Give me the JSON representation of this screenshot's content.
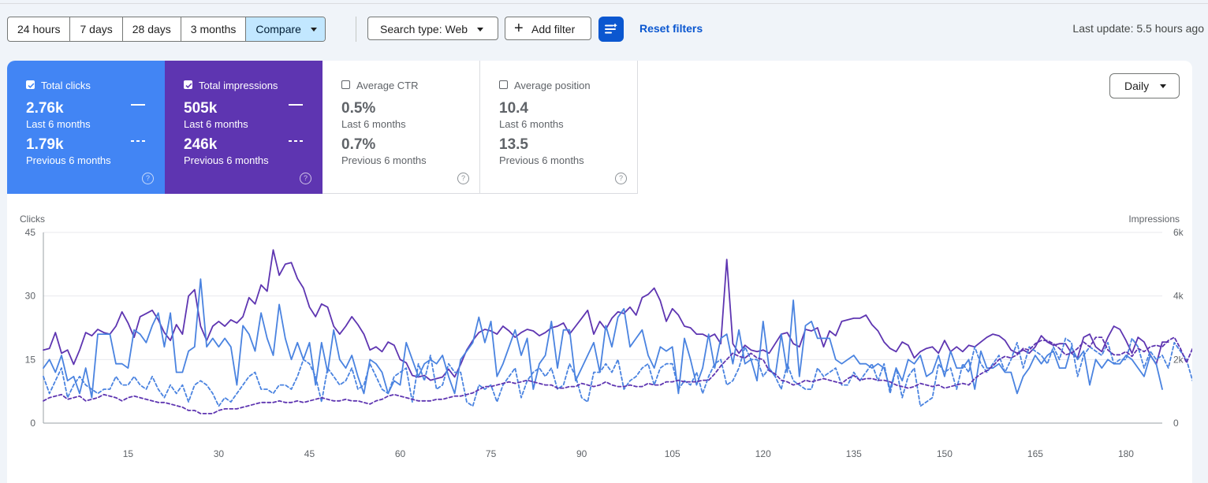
{
  "toolbar": {
    "ranges": [
      "24 hours",
      "7 days",
      "28 days",
      "3 months"
    ],
    "compare_label": "Compare",
    "search_type_label": "Search type: Web",
    "add_filter_label": "Add filter",
    "reset_filters_label": "Reset filters",
    "last_update": "Last update: 5.5 hours ago"
  },
  "metrics": {
    "clicks": {
      "label": "Total clicks",
      "value": "2.76k",
      "period": "Last 6 months",
      "prev_value": "1.79k",
      "prev_period": "Previous 6 months",
      "checked": true
    },
    "impressions": {
      "label": "Total impressions",
      "value": "505k",
      "period": "Last 6 months",
      "prev_value": "246k",
      "prev_period": "Previous 6 months",
      "checked": true
    },
    "ctr": {
      "label": "Average CTR",
      "value": "0.5%",
      "period": "Last 6 months",
      "prev_value": "0.7%",
      "prev_period": "Previous 6 months",
      "checked": false
    },
    "position": {
      "label": "Average position",
      "value": "10.4",
      "period": "Last 6 months",
      "prev_value": "13.5",
      "prev_period": "Previous 6 months",
      "checked": false
    }
  },
  "granularity_label": "Daily",
  "colors": {
    "clicks": "#4285f4",
    "impressions": "#5e35b1",
    "primary": "#0b57d0"
  },
  "chart_data": {
    "type": "line",
    "left_axis_label": "Clicks",
    "right_axis_label": "Impressions",
    "y_left_range": [
      0,
      45
    ],
    "y_left_ticks": [
      "0",
      "15",
      "30",
      "45"
    ],
    "y_right_range": [
      0,
      6000
    ],
    "y_right_ticks": [
      "0",
      "2k",
      "4k",
      "6k"
    ],
    "x_range": [
      1,
      186
    ],
    "x_ticks": [
      15,
      30,
      45,
      60,
      75,
      90,
      105,
      120,
      135,
      150,
      165,
      180
    ],
    "grid": true,
    "series": [
      {
        "axis": "right",
        "color": "#5e35b1",
        "dashed": false,
        "y": [
          2300,
          2350,
          2850,
          2200,
          2300,
          1850,
          2300,
          2850,
          2750,
          2950,
          2850,
          2800,
          3050,
          3500,
          3150,
          2700,
          3350,
          3450,
          3550,
          3250,
          2850,
          2600,
          3100,
          2800,
          4000,
          4200,
          3050,
          2600,
          3050,
          3200,
          3050,
          3250,
          3150,
          3350,
          3950,
          3750,
          4350,
          4150,
          5450,
          4650,
          5000,
          5050,
          4550,
          4250,
          3650,
          3350,
          3750,
          3650,
          3050,
          2800,
          3050,
          3350,
          3100,
          2800,
          2300,
          2400,
          2250,
          2550,
          2450,
          2000,
          1900,
          1500,
          1450,
          1500,
          1350,
          1400,
          1450,
          1700,
          1450,
          1850,
          2300,
          2600,
          2850,
          2950,
          2900,
          2800,
          3050,
          2900,
          2700,
          2850,
          2950,
          2900,
          2750,
          2850,
          3000,
          3050,
          3150,
          2800,
          3050,
          3300,
          3550,
          2800,
          3200,
          2950,
          3300,
          3500,
          3450,
          3650,
          3400,
          3950,
          4050,
          4250,
          3850,
          3200,
          3600,
          3400,
          3050,
          3000,
          2800,
          2800,
          2700,
          2800,
          2500,
          5150,
          2500,
          2200,
          2450,
          2300,
          2250,
          2300,
          2200,
          2500,
          2800,
          2850,
          2500,
          2400,
          2950,
          2900,
          3000,
          2400,
          2900,
          2750,
          3200,
          3250,
          3300,
          3300,
          3400,
          3100,
          2900,
          2550,
          2350,
          2250,
          2550,
          2450,
          2050,
          2250,
          2350,
          2400,
          2200,
          2600,
          2250,
          2400,
          2250,
          2450,
          2400,
          2550,
          2700,
          2800,
          2750,
          2600,
          2300,
          2200,
          2300,
          2200,
          2400,
          2750,
          2550,
          2450,
          2500,
          2500,
          2200,
          2050,
          2700,
          2800,
          2400,
          2250,
          2700,
          3050,
          2950,
          2600,
          2200,
          2700,
          2550,
          2150,
          1850,
          2550,
          2550
        ]
      },
      {
        "axis": "left",
        "color": "#4a83e0",
        "dashed": false,
        "y": [
          13,
          15,
          12,
          16,
          10,
          11,
          7,
          13,
          6,
          21,
          21,
          21,
          14,
          14,
          13,
          22,
          21,
          19,
          23,
          26,
          18,
          26,
          12,
          12,
          17,
          18,
          34,
          18,
          20,
          18,
          20,
          18,
          9,
          23,
          21,
          17,
          26,
          20,
          16,
          28,
          20,
          15,
          19,
          15,
          19,
          9,
          19,
          12,
          22,
          15,
          13,
          16,
          11,
          7,
          15,
          14,
          12,
          7,
          10,
          9,
          19,
          15,
          11,
          14,
          15,
          14,
          16,
          11,
          7,
          15,
          17,
          19,
          25,
          19,
          24,
          11,
          14,
          18,
          22,
          16,
          20,
          8,
          14,
          16,
          24,
          13,
          22,
          22,
          10,
          13,
          16,
          19,
          12,
          23,
          18,
          25,
          27,
          18,
          20,
          22,
          16,
          13,
          18,
          17,
          18,
          7,
          20,
          15,
          9,
          13,
          21,
          13,
          20,
          21,
          14,
          22,
          14,
          15,
          10,
          24,
          13,
          11,
          21,
          12,
          29,
          11,
          23,
          24,
          20,
          20,
          20,
          15,
          14,
          15,
          16,
          14,
          14,
          13,
          14,
          13,
          8,
          13,
          10,
          15,
          14,
          16,
          11,
          12,
          16,
          11,
          17,
          13,
          13,
          15,
          8,
          17,
          13,
          13,
          14,
          12,
          12,
          7,
          11,
          13,
          16,
          14,
          16,
          17,
          13,
          13,
          18,
          15,
          17,
          9,
          15,
          13,
          15,
          14,
          14,
          16,
          15,
          13,
          11,
          16,
          14,
          8
        ]
      },
      {
        "axis": "left",
        "color": "#4a83e0",
        "dashed": true,
        "y": [
          11,
          7,
          10,
          13,
          6,
          9,
          11,
          9,
          8,
          7,
          8,
          8,
          11,
          9,
          9,
          11,
          9,
          8,
          11,
          8,
          6,
          9,
          7,
          9,
          5,
          9,
          10,
          9,
          7,
          4,
          6,
          5,
          7,
          9,
          11,
          12,
          8,
          8,
          7,
          9,
          9,
          8,
          11,
          15,
          14,
          11,
          5,
          13,
          11,
          9,
          10,
          13,
          8,
          9,
          14,
          11,
          8,
          7,
          11,
          12,
          13,
          5,
          14,
          10,
          16,
          8,
          9,
          14,
          12,
          12,
          5,
          4,
          9,
          8,
          9,
          5,
          9,
          11,
          13,
          6,
          10,
          12,
          13,
          11,
          13,
          8,
          9,
          14,
          11,
          6,
          5,
          12,
          12,
          14,
          12,
          15,
          8,
          10,
          11,
          13,
          14,
          9,
          13,
          14,
          14,
          8,
          10,
          9,
          12,
          7,
          11,
          14,
          15,
          9,
          10,
          13,
          18,
          15,
          15,
          11,
          13,
          11,
          8,
          14,
          10,
          9,
          8,
          8,
          13,
          11,
          12,
          13,
          9,
          9,
          12,
          10,
          12,
          14,
          10,
          14,
          7,
          13,
          6,
          11,
          13,
          4,
          5,
          6,
          14,
          12,
          13,
          8,
          14,
          12,
          18,
          14,
          12,
          14,
          16,
          12,
          15,
          19,
          13,
          18,
          17,
          16,
          14,
          18,
          15,
          20,
          19,
          11,
          16,
          18,
          17,
          16,
          19,
          14,
          15,
          15,
          20,
          18,
          13,
          17,
          15,
          16,
          13,
          19,
          17,
          15,
          10,
          11,
          14,
          13,
          19,
          13,
          11,
          16,
          12
        ]
      },
      {
        "axis": "right",
        "color": "#5e35b1",
        "dashed": true,
        "y": [
          700,
          800,
          850,
          900,
          750,
          800,
          850,
          700,
          750,
          800,
          900,
          850,
          800,
          700,
          800,
          850,
          800,
          750,
          700,
          650,
          650,
          600,
          550,
          500,
          400,
          400,
          300,
          300,
          300,
          400,
          450,
          450,
          450,
          500,
          550,
          600,
          650,
          650,
          650,
          700,
          650,
          650,
          700,
          650,
          700,
          750,
          800,
          750,
          700,
          700,
          750,
          700,
          700,
          650,
          600,
          700,
          750,
          850,
          900,
          850,
          800,
          750,
          700,
          700,
          700,
          750,
          750,
          800,
          850,
          850,
          900,
          950,
          1050,
          1150,
          1150,
          1200,
          1250,
          1300,
          1250,
          1300,
          1350,
          1300,
          1250,
          1200,
          1200,
          1100,
          1100,
          1150,
          1150,
          1250,
          1200,
          1150,
          1200,
          1300,
          1200,
          1150,
          1150,
          1200,
          1150,
          1150,
          1250,
          1200,
          1200,
          1300,
          1300,
          1350,
          1300,
          1300,
          1300,
          1350,
          1350,
          1550,
          1800,
          2000,
          2200,
          2100,
          2050,
          2200,
          2050,
          2000,
          1650,
          1550,
          1350,
          1300,
          1200,
          1250,
          1350,
          1300,
          1350,
          1400,
          1350,
          1300,
          1250,
          1400,
          1500,
          1350,
          1400,
          1400,
          1350,
          1350,
          1300,
          1200,
          1150,
          1100,
          1150,
          1250,
          1200,
          1150,
          1200,
          1100,
          1150,
          1200,
          1250,
          1200,
          1400,
          1550,
          1650,
          1800,
          2000,
          2100,
          2050,
          2150,
          2350,
          2300,
          2500,
          2600,
          2600,
          2500,
          2350,
          2150,
          2200,
          2350,
          2550,
          2400,
          2700,
          2700,
          2300,
          2150,
          2150,
          2250,
          2100,
          2350,
          2250,
          2400,
          2450,
          2400,
          2600,
          2700,
          2350,
          1900,
          2350,
          2550,
          3500,
          2800,
          2200,
          2500,
          2550,
          2300,
          1950,
          1750,
          1850,
          1850
        ]
      }
    ]
  }
}
